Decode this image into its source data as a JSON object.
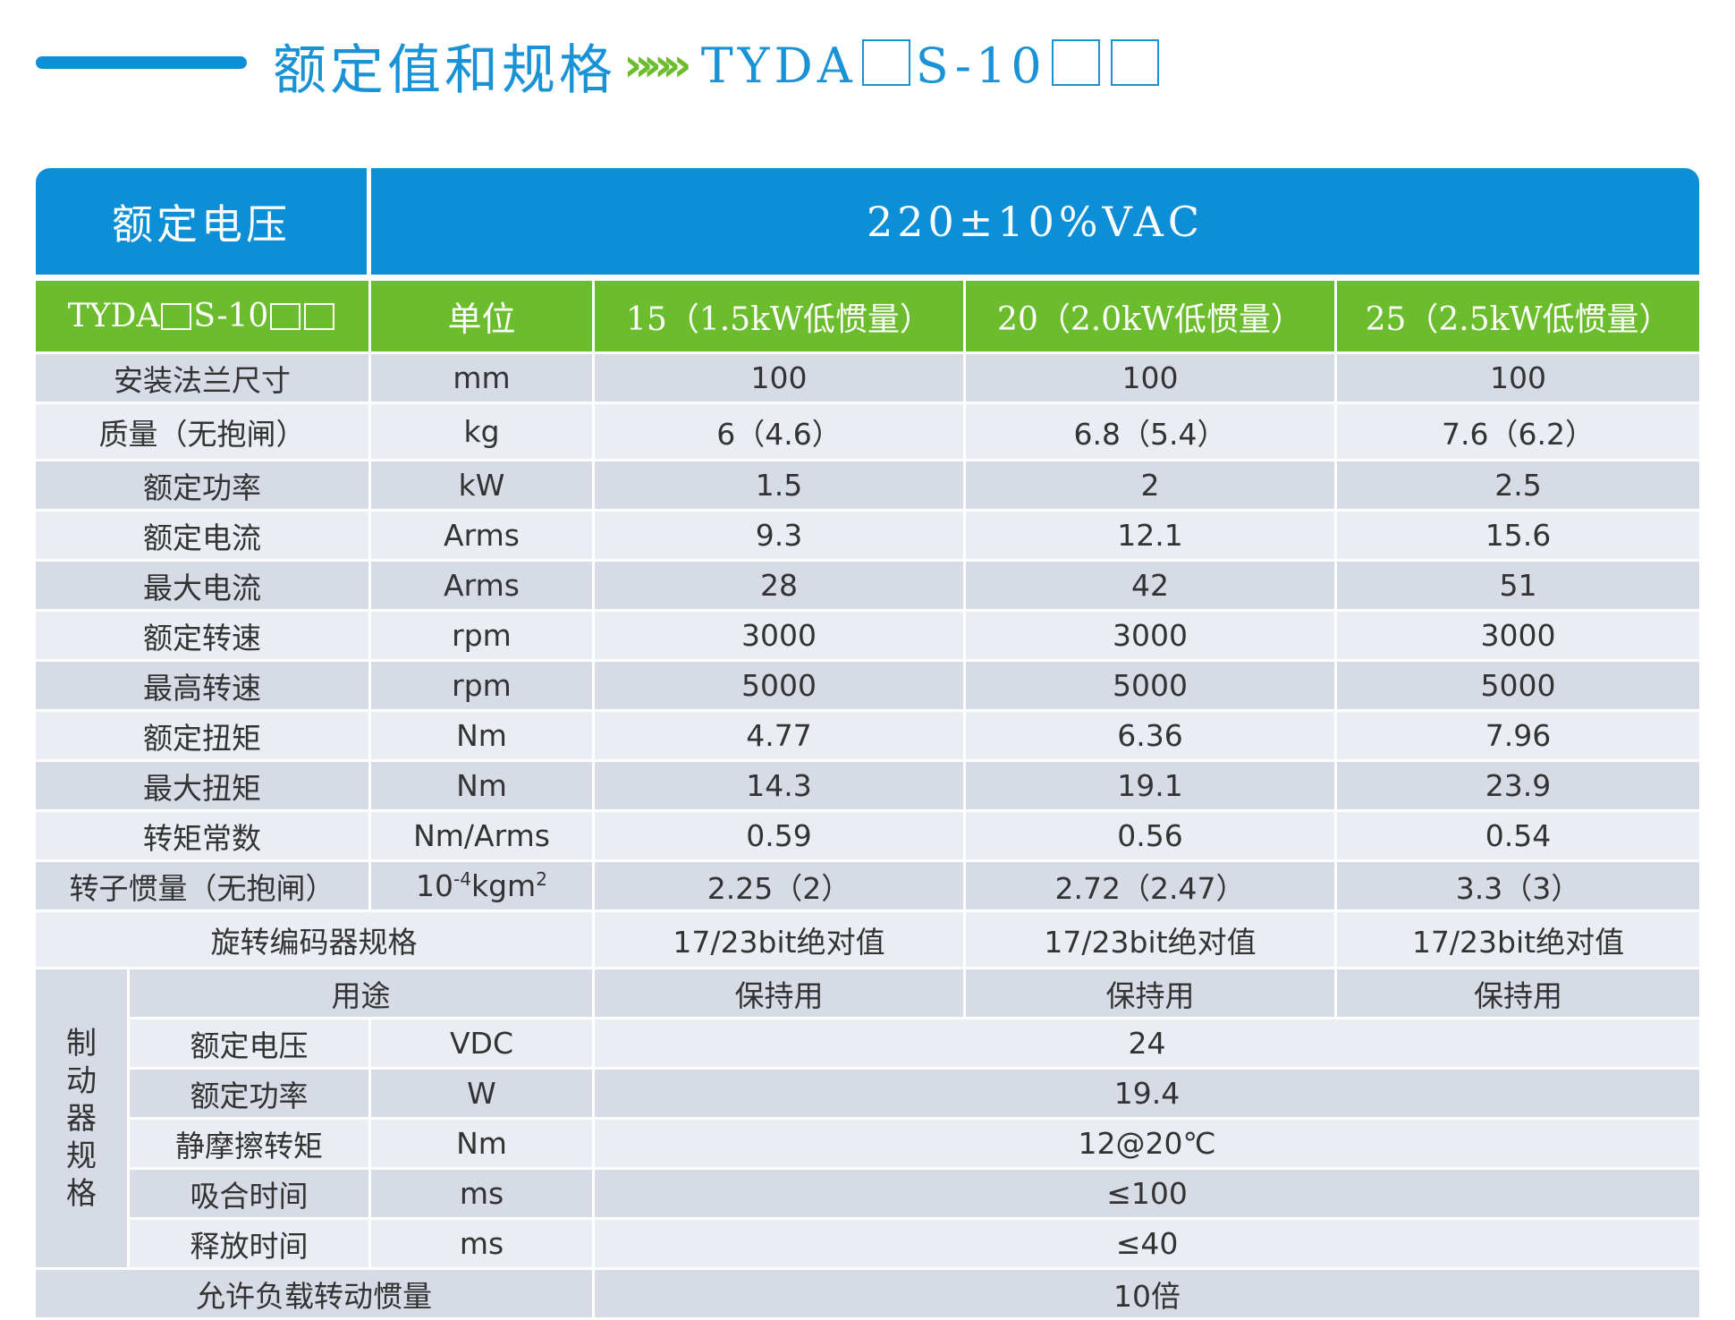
{
  "header": {
    "title": "额定值和规格",
    "arrows": "»»»",
    "model_prefix": "TYDA",
    "model_mid": "S-10"
  },
  "table": {
    "voltage_label": "额定电压",
    "voltage_value": "220±10%VAC",
    "col_headers": {
      "model_prefix": "TYDA",
      "model_mid": "S-10",
      "unit": "单位",
      "m15": "15（1.5kW低惯量）",
      "m20": "20（2.0kW低惯量）",
      "m25": "25（2.5kW低惯量）"
    },
    "rows": [
      {
        "label": "安装法兰尺寸",
        "unit": "mm",
        "v15": "100",
        "v20": "100",
        "v25": "100"
      },
      {
        "label": "质量（无抱闸）",
        "unit": "kg",
        "v15": "6（4.6）",
        "v20": "6.8（5.4）",
        "v25": "7.6（6.2）"
      },
      {
        "label": "额定功率",
        "unit": "kW",
        "v15": "1.5",
        "v20": "2",
        "v25": "2.5"
      },
      {
        "label": "额定电流",
        "unit": "Arms",
        "v15": "9.3",
        "v20": "12.1",
        "v25": "15.6"
      },
      {
        "label": "最大电流",
        "unit": "Arms",
        "v15": "28",
        "v20": "42",
        "v25": "51"
      },
      {
        "label": "额定转速",
        "unit": "rpm",
        "v15": "3000",
        "v20": "3000",
        "v25": "3000"
      },
      {
        "label": "最高转速",
        "unit": "rpm",
        "v15": "5000",
        "v20": "5000",
        "v25": "5000"
      },
      {
        "label": "额定扭矩",
        "unit": "Nm",
        "v15": "4.77",
        "v20": "6.36",
        "v25": "7.96"
      },
      {
        "label": "最大扭矩",
        "unit": "Nm",
        "v15": "14.3",
        "v20": "19.1",
        "v25": "23.9"
      },
      {
        "label": "转矩常数",
        "unit": "Nm/Arms",
        "v15": "0.59",
        "v20": "0.56",
        "v25": "0.54"
      },
      {
        "label": "转子惯量（无抱闸）",
        "unit_base": "10",
        "unit_exp": "-4",
        "unit_kg": "kgm",
        "unit_exp2": "2",
        "v15": "2.25（2）",
        "v20": "2.72（2.47）",
        "v25": "3.3（3）"
      }
    ],
    "encoder": {
      "label": "旋转编码器规格",
      "v15": "17/23bit绝对值",
      "v20": "17/23bit绝对值",
      "v25": "17/23bit绝对值"
    },
    "brake": {
      "label_chars": [
        "制",
        "动",
        "器",
        "规",
        "格"
      ],
      "usage": {
        "label": "用途",
        "v15": "保持用",
        "v20": "保持用",
        "v25": "保持用"
      },
      "rows": [
        {
          "label": "额定电压",
          "unit": "VDC",
          "value": "24"
        },
        {
          "label": "额定功率",
          "unit": "W",
          "value": "19.4"
        },
        {
          "label": "静摩擦转矩",
          "unit": "Nm",
          "value": "12@20℃"
        },
        {
          "label": "吸合时间",
          "unit": "ms",
          "value": "≤100"
        },
        {
          "label": "释放时间",
          "unit": "ms",
          "value": "≤40"
        }
      ]
    },
    "inertia": {
      "label": "允许负载转动惯量",
      "value": "10倍"
    }
  },
  "colors": {
    "blue": "#0d8fd8",
    "green": "#6cbd2d",
    "row_dark": "#d6dbe6",
    "row_light": "#eaedf3"
  }
}
